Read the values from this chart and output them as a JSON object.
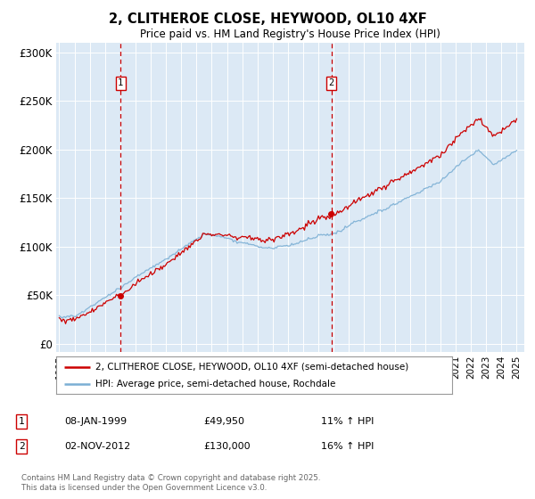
{
  "title": "2, CLITHEROE CLOSE, HEYWOOD, OL10 4XF",
  "subtitle": "Price paid vs. HM Land Registry's House Price Index (HPI)",
  "legend_line1": "2, CLITHEROE CLOSE, HEYWOOD, OL10 4XF (semi-detached house)",
  "legend_line2": "HPI: Average price, semi-detached house, Rochdale",
  "footer": "Contains HM Land Registry data © Crown copyright and database right 2025.\nThis data is licensed under the Open Government Licence v3.0.",
  "sale1_date": "08-JAN-1999",
  "sale1_price": 49950,
  "sale1_label": "£49,950",
  "sale1_hpi": "11% ↑ HPI",
  "sale1_year": 1999.02,
  "sale2_date": "02-NOV-2012",
  "sale2_price": 130000,
  "sale2_label": "£130,000",
  "sale2_hpi": "16% ↑ HPI",
  "sale2_year": 2012.84,
  "ylabel_ticks": [
    "£0",
    "£50K",
    "£100K",
    "£150K",
    "£200K",
    "£250K",
    "£300K"
  ],
  "ylabel_values": [
    0,
    50000,
    100000,
    150000,
    200000,
    250000,
    300000
  ],
  "hpi_color": "#7bafd4",
  "price_color": "#cc0000",
  "dashed_color": "#cc0000",
  "background_color": "#dce9f5",
  "grid_color": "#ffffff",
  "fig_bg": "#ffffff"
}
